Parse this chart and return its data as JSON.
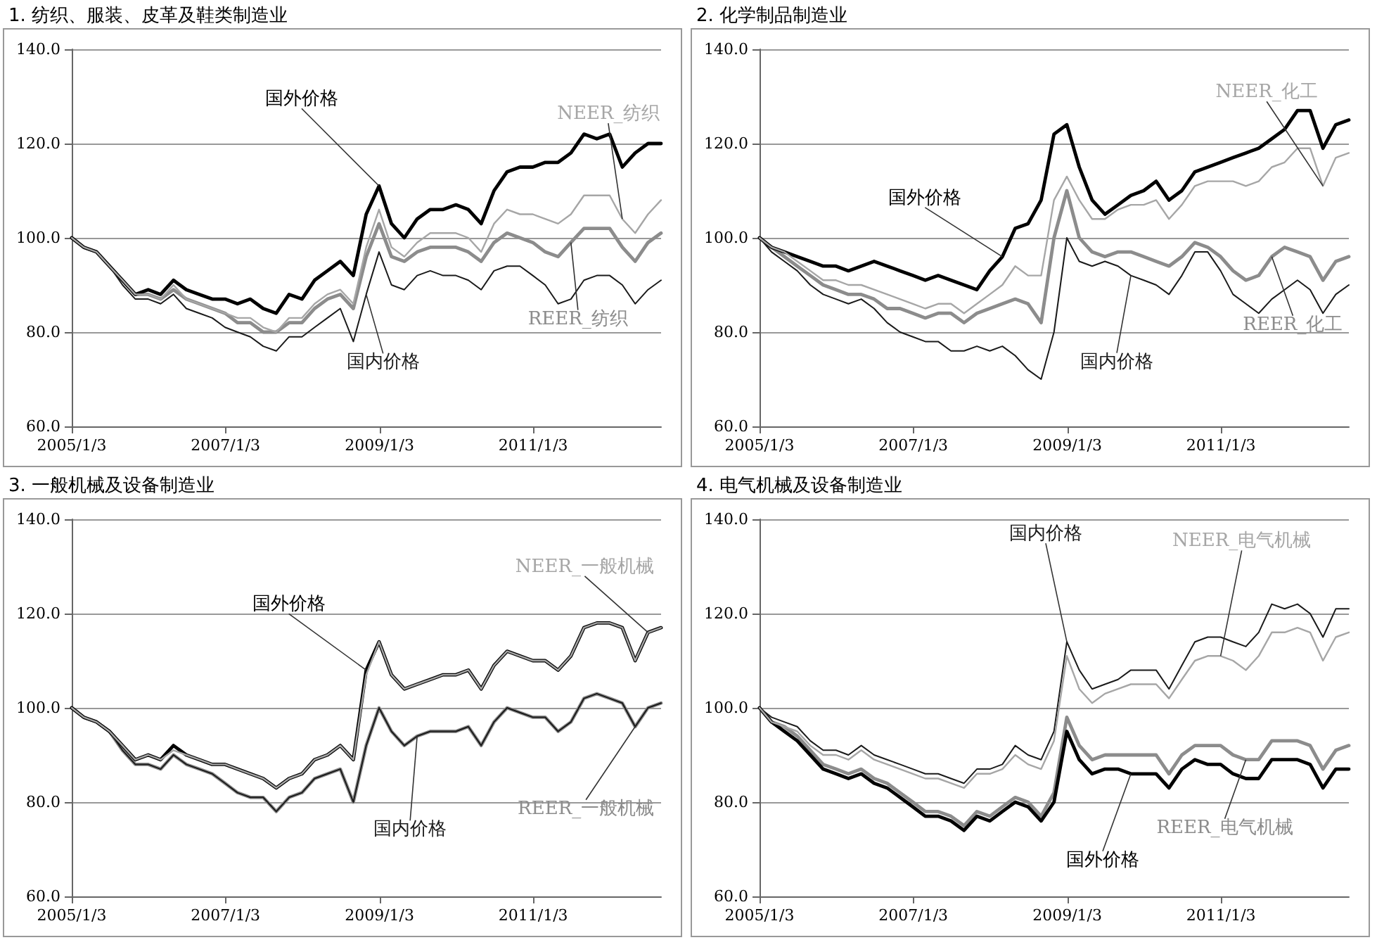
{
  "chart_data": [
    {
      "type": "line",
      "title": "1. 纺织、服装、皮革及鞋类制造业",
      "line_style": "solid",
      "marker": "none",
      "grid": "y",
      "ylim": [
        60,
        140
      ],
      "yticks": [
        {
          "value": 60,
          "label": "60.0"
        },
        {
          "value": 80,
          "label": "80.0"
        },
        {
          "value": 100,
          "label": "100.0"
        },
        {
          "value": 120,
          "label": "120.0"
        },
        {
          "value": 140,
          "label": "140.0"
        }
      ],
      "xlim": [
        "2005-01-03",
        "2012-09-01"
      ],
      "xticks": [
        {
          "value": "2005-01-03",
          "label": "2005/1/3"
        },
        {
          "value": "2007-01-03",
          "label": "2007/1/3"
        },
        {
          "value": "2009-01-03",
          "label": "2009/1/3"
        },
        {
          "value": "2011-01-03",
          "label": "2011/1/3"
        }
      ],
      "x": [
        "2005-01-03",
        "2005-03",
        "2005-05",
        "2005-07",
        "2005-09",
        "2005-11",
        "2006-01",
        "2006-03",
        "2006-05",
        "2006-07",
        "2006-09",
        "2006-11",
        "2007-01",
        "2007-03",
        "2007-05",
        "2007-07",
        "2007-09",
        "2007-11",
        "2008-01",
        "2008-03",
        "2008-05",
        "2008-07",
        "2008-09",
        "2008-11",
        "2009-01",
        "2009-03",
        "2009-05",
        "2009-07",
        "2009-09",
        "2009-11",
        "2010-01",
        "2010-03",
        "2010-05",
        "2010-07",
        "2010-09",
        "2010-11",
        "2011-01",
        "2011-03",
        "2011-05",
        "2011-07",
        "2011-09",
        "2011-11",
        "2012-01",
        "2012-03",
        "2012-05",
        "2012-07",
        "2012-09"
      ],
      "series": [
        {
          "name": "国外价格",
          "color": "#000000",
          "values": [
            100,
            98,
            97,
            94,
            91,
            88,
            89,
            88,
            91,
            89,
            88,
            87,
            87,
            86,
            87,
            85,
            84,
            88,
            87,
            91,
            93,
            95,
            92,
            105,
            111,
            103,
            100,
            104,
            106,
            106,
            107,
            106,
            103,
            110,
            114,
            115,
            115,
            116,
            116,
            118,
            122,
            121,
            122,
            115,
            118,
            120,
            120
          ]
        },
        {
          "name": "NEER_纺织",
          "color": "#a6a6a6",
          "values": [
            100,
            98,
            97,
            94,
            91,
            88,
            88,
            87,
            90,
            87,
            86,
            85,
            84,
            83,
            83,
            81,
            80,
            83,
            83,
            86,
            88,
            89,
            86,
            98,
            106,
            98,
            96,
            99,
            101,
            101,
            101,
            100,
            97,
            103,
            106,
            105,
            105,
            104,
            103,
            105,
            109,
            109,
            109,
            104,
            101,
            105,
            108
          ]
        },
        {
          "name": "REER_纺织",
          "color": "#8c8c8c",
          "values": [
            100,
            98,
            97,
            94,
            91,
            88,
            88,
            87,
            89,
            87,
            86,
            85,
            84,
            82,
            82,
            80,
            80,
            82,
            82,
            85,
            87,
            88,
            85,
            96,
            103,
            96,
            95,
            97,
            98,
            98,
            98,
            97,
            95,
            99,
            101,
            100,
            99,
            97,
            96,
            99,
            102,
            102,
            102,
            98,
            95,
            99,
            101
          ]
        },
        {
          "name": "国内价格",
          "color": "#1a1a1a",
          "values": [
            100,
            98,
            97,
            94,
            90,
            87,
            87,
            86,
            88,
            85,
            84,
            83,
            81,
            80,
            79,
            77,
            76,
            79,
            79,
            81,
            83,
            85,
            78,
            88,
            97,
            90,
            89,
            92,
            93,
            92,
            92,
            91,
            89,
            93,
            94,
            94,
            92,
            90,
            86,
            87,
            91,
            92,
            92,
            90,
            86,
            89,
            91
          ]
        }
      ]
    },
    {
      "type": "line",
      "title": "2. 化学制品制造业",
      "line_style": "solid",
      "marker": "none",
      "grid": "y",
      "ylim": [
        60,
        140
      ],
      "yticks": [
        {
          "value": 60,
          "label": "60.0"
        },
        {
          "value": 80,
          "label": "80.0"
        },
        {
          "value": 100,
          "label": "100.0"
        },
        {
          "value": 120,
          "label": "120.0"
        },
        {
          "value": 140,
          "label": "140.0"
        }
      ],
      "xlim": [
        "2005-01-03",
        "2012-09-01"
      ],
      "xticks": [
        {
          "value": "2005-01-03",
          "label": "2005/1/3"
        },
        {
          "value": "2007-01-03",
          "label": "2007/1/3"
        },
        {
          "value": "2009-01-03",
          "label": "2009/1/3"
        },
        {
          "value": "2011-01-03",
          "label": "2011/1/3"
        }
      ],
      "x": [
        "2005-01-03",
        "2005-03",
        "2005-05",
        "2005-07",
        "2005-09",
        "2005-11",
        "2006-01",
        "2006-03",
        "2006-05",
        "2006-07",
        "2006-09",
        "2006-11",
        "2007-01",
        "2007-03",
        "2007-05",
        "2007-07",
        "2007-09",
        "2007-11",
        "2008-01",
        "2008-03",
        "2008-05",
        "2008-07",
        "2008-09",
        "2008-11",
        "2009-01",
        "2009-03",
        "2009-05",
        "2009-07",
        "2009-09",
        "2009-11",
        "2010-01",
        "2010-03",
        "2010-05",
        "2010-07",
        "2010-09",
        "2010-11",
        "2011-01",
        "2011-03",
        "2011-05",
        "2011-07",
        "2011-09",
        "2011-11",
        "2012-01",
        "2012-03",
        "2012-05",
        "2012-07",
        "2012-09"
      ],
      "series": [
        {
          "name": "国外价格",
          "color": "#000000",
          "values": [
            100,
            98,
            97,
            96,
            95,
            94,
            94,
            93,
            94,
            95,
            94,
            93,
            92,
            91,
            92,
            91,
            90,
            89,
            93,
            96,
            102,
            103,
            108,
            122,
            124,
            115,
            108,
            105,
            107,
            109,
            110,
            112,
            108,
            110,
            114,
            115,
            116,
            117,
            118,
            119,
            121,
            123,
            127,
            127,
            119,
            124,
            125
          ]
        },
        {
          "name": "NEER_化工",
          "color": "#a6a6a6",
          "values": [
            100,
            98,
            97,
            95,
            93,
            91,
            91,
            90,
            90,
            89,
            88,
            87,
            86,
            85,
            86,
            86,
            84,
            86,
            88,
            90,
            94,
            92,
            92,
            108,
            113,
            108,
            104,
            104,
            106,
            107,
            107,
            108,
            104,
            107,
            111,
            112,
            112,
            112,
            111,
            112,
            115,
            116,
            119,
            119,
            111,
            117,
            118
          ]
        },
        {
          "name": "REER_化工",
          "color": "#8c8c8c",
          "values": [
            100,
            98,
            96,
            94,
            92,
            90,
            89,
            88,
            88,
            87,
            85,
            85,
            84,
            83,
            84,
            84,
            82,
            84,
            85,
            86,
            87,
            86,
            82,
            100,
            110,
            100,
            97,
            96,
            97,
            97,
            96,
            95,
            94,
            96,
            99,
            98,
            96,
            93,
            91,
            92,
            96,
            98,
            97,
            96,
            91,
            95,
            96
          ]
        },
        {
          "name": "国内价格",
          "color": "#1a1a1a",
          "values": [
            100,
            97,
            95,
            93,
            90,
            88,
            87,
            86,
            87,
            85,
            82,
            80,
            79,
            78,
            78,
            76,
            76,
            77,
            76,
            77,
            75,
            72,
            70,
            80,
            100,
            95,
            94,
            95,
            94,
            92,
            91,
            90,
            88,
            92,
            97,
            97,
            93,
            88,
            86,
            84,
            87,
            89,
            91,
            89,
            84,
            88,
            90
          ]
        }
      ]
    },
    {
      "type": "line",
      "title": "3. 一般机械及设备制造业",
      "line_style": "solid",
      "marker": "none",
      "grid": "y",
      "ylim": [
        60,
        140
      ],
      "yticks": [
        {
          "value": 60,
          "label": "60.0"
        },
        {
          "value": 80,
          "label": "80.0"
        },
        {
          "value": 100,
          "label": "100.0"
        },
        {
          "value": 120,
          "label": "120.0"
        },
        {
          "value": 140,
          "label": "140.0"
        }
      ],
      "xlim": [
        "2005-01-03",
        "2012-09-01"
      ],
      "xticks": [
        {
          "value": "2005-01-03",
          "label": "2005/1/3"
        },
        {
          "value": "2007-01-03",
          "label": "2007/1/3"
        },
        {
          "value": "2009-01-03",
          "label": "2009/1/3"
        },
        {
          "value": "2011-01-03",
          "label": "2011/1/3"
        }
      ],
      "x": [
        "2005-01-03",
        "2005-03",
        "2005-05",
        "2005-07",
        "2005-09",
        "2005-11",
        "2006-01",
        "2006-03",
        "2006-05",
        "2006-07",
        "2006-09",
        "2006-11",
        "2007-01",
        "2007-03",
        "2007-05",
        "2007-07",
        "2007-09",
        "2007-11",
        "2008-01",
        "2008-03",
        "2008-05",
        "2008-07",
        "2008-09",
        "2008-11",
        "2009-01",
        "2009-03",
        "2009-05",
        "2009-07",
        "2009-09",
        "2009-11",
        "2010-01",
        "2010-03",
        "2010-05",
        "2010-07",
        "2010-09",
        "2010-11",
        "2011-01",
        "2011-03",
        "2011-05",
        "2011-07",
        "2011-09",
        "2011-11",
        "2012-01",
        "2012-03",
        "2012-05",
        "2012-07",
        "2012-09"
      ],
      "series": [
        {
          "name": "国外价格",
          "color": "#000000",
          "values": [
            100,
            98,
            97,
            95,
            92,
            89,
            90,
            89,
            92,
            90,
            89,
            88,
            88,
            87,
            86,
            85,
            83,
            85,
            86,
            89,
            90,
            92,
            89,
            108,
            114,
            107,
            104,
            105,
            106,
            107,
            107,
            108,
            104,
            109,
            112,
            111,
            110,
            110,
            108,
            111,
            117,
            118,
            118,
            117,
            110,
            116,
            117
          ]
        },
        {
          "name": "NEER_一般机械",
          "color": "#a6a6a6",
          "values": [
            100,
            98,
            97,
            95,
            92,
            89,
            90,
            89,
            91,
            90,
            89,
            88,
            88,
            87,
            86,
            85,
            83,
            85,
            86,
            89,
            90,
            92,
            89,
            107,
            114,
            107,
            104,
            105,
            106,
            107,
            107,
            108,
            104,
            109,
            112,
            111,
            110,
            110,
            108,
            111,
            117,
            118,
            118,
            117,
            110,
            116,
            117
          ]
        },
        {
          "name": "REER_一般机械",
          "color": "#8c8c8c",
          "values": [
            100,
            98,
            97,
            95,
            91,
            88,
            88,
            87,
            90,
            88,
            87,
            86,
            84,
            82,
            81,
            81,
            78,
            81,
            82,
            85,
            86,
            87,
            80,
            92,
            100,
            95,
            92,
            94,
            95,
            95,
            95,
            96,
            92,
            97,
            100,
            99,
            98,
            98,
            95,
            97,
            102,
            103,
            102,
            101,
            96,
            100,
            101
          ]
        },
        {
          "name": "国内价格",
          "color": "#1a1a1a",
          "values": [
            100,
            98,
            97,
            95,
            91,
            88,
            88,
            87,
            90,
            88,
            87,
            86,
            84,
            82,
            81,
            81,
            78,
            81,
            82,
            85,
            86,
            87,
            80,
            92,
            100,
            95,
            92,
            94,
            95,
            95,
            95,
            96,
            92,
            97,
            100,
            99,
            98,
            98,
            95,
            97,
            102,
            103,
            102,
            101,
            96,
            100,
            101
          ]
        }
      ]
    },
    {
      "type": "line",
      "title": "4. 电气机械及设备制造业",
      "line_style": "solid",
      "marker": "none",
      "grid": "y",
      "ylim": [
        60,
        140
      ],
      "yticks": [
        {
          "value": 60,
          "label": "60.0"
        },
        {
          "value": 80,
          "label": "80.0"
        },
        {
          "value": 100,
          "label": "100.0"
        },
        {
          "value": 120,
          "label": "120.0"
        },
        {
          "value": 140,
          "label": "140.0"
        }
      ],
      "xlim": [
        "2005-01-03",
        "2012-09-01"
      ],
      "xticks": [
        {
          "value": "2005-01-03",
          "label": "2005/1/3"
        },
        {
          "value": "2007-01-03",
          "label": "2007/1/3"
        },
        {
          "value": "2009-01-03",
          "label": "2009/1/3"
        },
        {
          "value": "2011-01-03",
          "label": "2011/1/3"
        }
      ],
      "x": [
        "2005-01-03",
        "2005-03",
        "2005-05",
        "2005-07",
        "2005-09",
        "2005-11",
        "2006-01",
        "2006-03",
        "2006-05",
        "2006-07",
        "2006-09",
        "2006-11",
        "2007-01",
        "2007-03",
        "2007-05",
        "2007-07",
        "2007-09",
        "2007-11",
        "2008-01",
        "2008-03",
        "2008-05",
        "2008-07",
        "2008-09",
        "2008-11",
        "2009-01",
        "2009-03",
        "2009-05",
        "2009-07",
        "2009-09",
        "2009-11",
        "2010-01",
        "2010-03",
        "2010-05",
        "2010-07",
        "2010-09",
        "2010-11",
        "2011-01",
        "2011-03",
        "2011-05",
        "2011-07",
        "2011-09",
        "2011-11",
        "2012-01",
        "2012-03",
        "2012-05",
        "2012-07",
        "2012-09"
      ],
      "series": [
        {
          "name": "国外价格",
          "color": "#000000",
          "values": [
            100,
            97,
            95,
            93,
            90,
            87,
            86,
            85,
            86,
            84,
            83,
            81,
            79,
            77,
            77,
            76,
            74,
            77,
            76,
            78,
            80,
            79,
            76,
            80,
            95,
            89,
            86,
            87,
            87,
            86,
            86,
            86,
            83,
            87,
            89,
            88,
            88,
            86,
            85,
            85,
            89,
            89,
            89,
            88,
            83,
            87,
            87
          ]
        },
        {
          "name": "NEER_电气机械",
          "color": "#a6a6a6",
          "values": [
            100,
            97,
            96,
            95,
            92,
            90,
            90,
            89,
            91,
            89,
            88,
            87,
            86,
            85,
            85,
            84,
            83,
            86,
            86,
            87,
            90,
            88,
            87,
            93,
            111,
            104,
            101,
            103,
            104,
            105,
            105,
            105,
            102,
            106,
            110,
            111,
            111,
            110,
            108,
            111,
            116,
            116,
            117,
            116,
            110,
            115,
            116
          ]
        },
        {
          "name": "REER_电气机械",
          "color": "#8c8c8c",
          "values": [
            100,
            97,
            96,
            94,
            91,
            88,
            87,
            86,
            87,
            85,
            84,
            82,
            80,
            78,
            78,
            77,
            75,
            78,
            77,
            79,
            81,
            80,
            77,
            82,
            98,
            92,
            89,
            90,
            90,
            90,
            90,
            90,
            86,
            90,
            92,
            92,
            92,
            90,
            89,
            89,
            93,
            93,
            93,
            92,
            87,
            91,
            92
          ]
        },
        {
          "name": "国内价格",
          "color": "#1a1a1a",
          "values": [
            100,
            98,
            97,
            96,
            93,
            91,
            91,
            90,
            92,
            90,
            89,
            88,
            87,
            86,
            86,
            85,
            84,
            87,
            87,
            88,
            92,
            90,
            89,
            95,
            114,
            108,
            104,
            105,
            106,
            108,
            108,
            108,
            104,
            109,
            114,
            115,
            115,
            114,
            113,
            116,
            122,
            121,
            122,
            120,
            115,
            121,
            121
          ]
        }
      ]
    }
  ]
}
